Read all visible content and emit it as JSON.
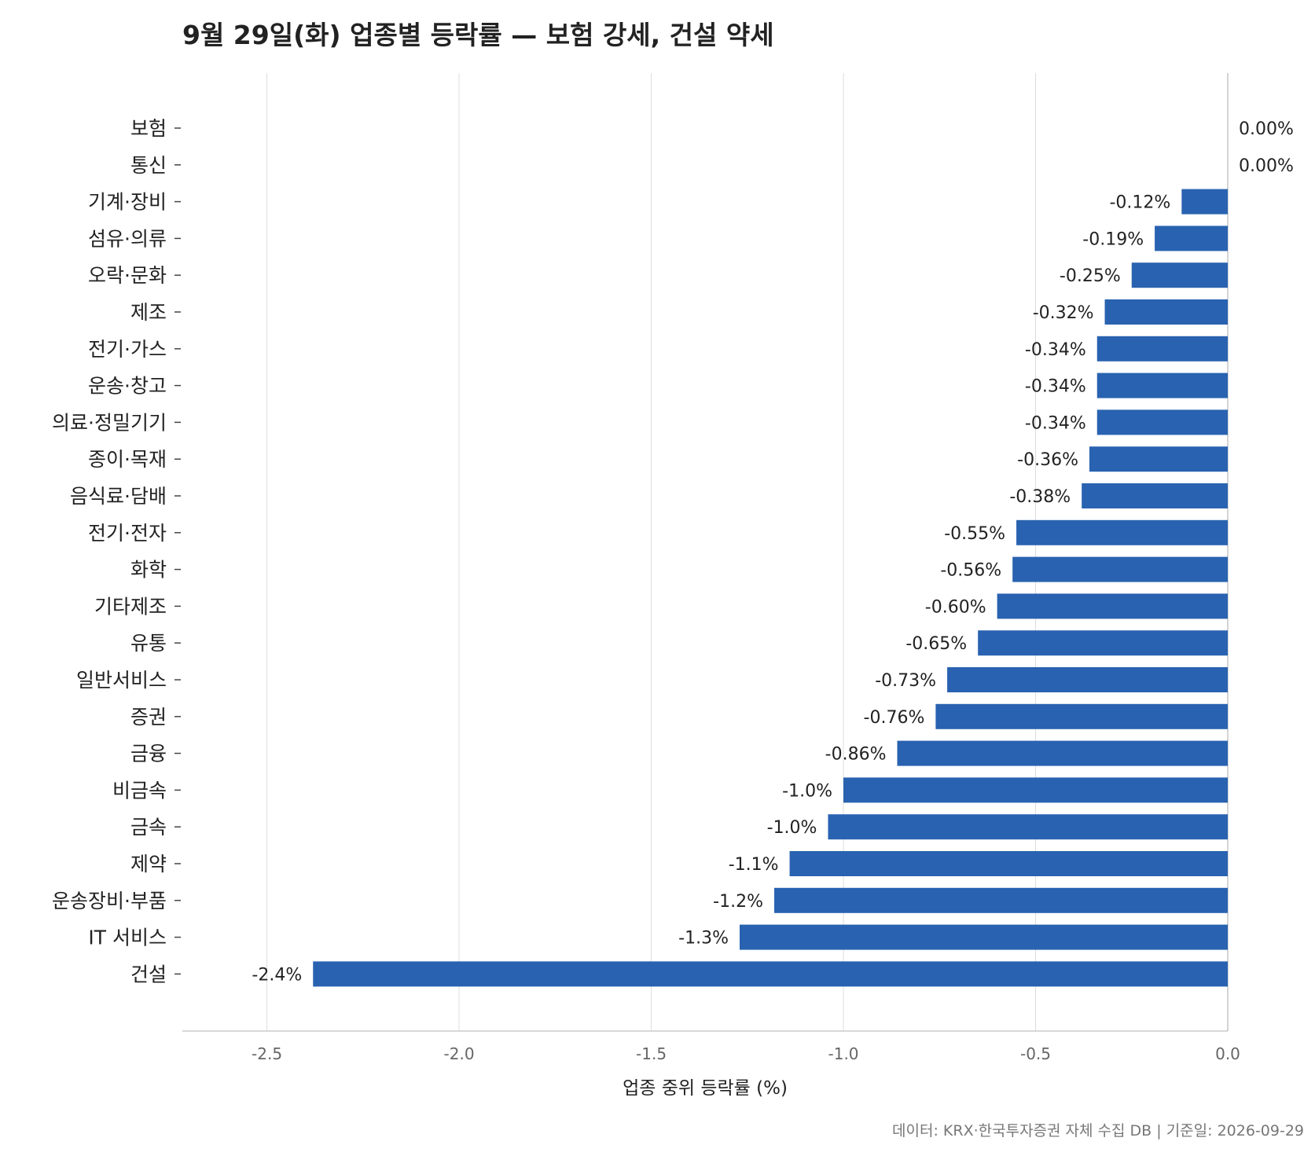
{
  "chart_data": {
    "type": "bar",
    "orientation": "horizontal",
    "title": "9월 29일(화) 업종별 등락률 — 보험 강세, 건설 약세",
    "xlabel": "업종 중위 등락률 (%)",
    "xlim": [
      -2.72,
      0.0
    ],
    "xticks": [
      -2.5,
      -2.0,
      -1.5,
      -1.0,
      -0.5,
      0.0
    ],
    "xtick_labels": [
      "-2.5",
      "-2.0",
      "-1.5",
      "-1.0",
      "-0.5",
      "0.0"
    ],
    "grid": "vertical",
    "bar_color": "#2962b0",
    "categories": [
      "보험",
      "통신",
      "기계·장비",
      "섬유·의류",
      "오락·문화",
      "제조",
      "전기·가스",
      "운송·창고",
      "의료·정밀기기",
      "종이·목재",
      "음식료·담배",
      "전기·전자",
      "화학",
      "기타제조",
      "유통",
      "일반서비스",
      "증권",
      "금융",
      "비금속",
      "금속",
      "제약",
      "운송장비·부품",
      "IT 서비스",
      "건설"
    ],
    "values": [
      0.0,
      0.0,
      -0.12,
      -0.19,
      -0.25,
      -0.32,
      -0.34,
      -0.34,
      -0.34,
      -0.36,
      -0.38,
      -0.55,
      -0.56,
      -0.6,
      -0.65,
      -0.73,
      -0.76,
      -0.86,
      -1.0,
      -1.04,
      -1.14,
      -1.18,
      -1.27,
      -2.38
    ],
    "value_labels": [
      "0.00%",
      "0.00%",
      "-0.12%",
      "-0.19%",
      "-0.25%",
      "-0.32%",
      "-0.34%",
      "-0.34%",
      "-0.34%",
      "-0.36%",
      "-0.38%",
      "-0.55%",
      "-0.56%",
      "-0.60%",
      "-0.65%",
      "-0.73%",
      "-0.76%",
      "-0.86%",
      "-1.0%",
      "-1.0%",
      "-1.1%",
      "-1.2%",
      "-1.3%",
      "-2.4%"
    ]
  },
  "footer": "데이터: KRX·한국투자증권 자체 수집 DB  |  기준일: 2026-09-29"
}
